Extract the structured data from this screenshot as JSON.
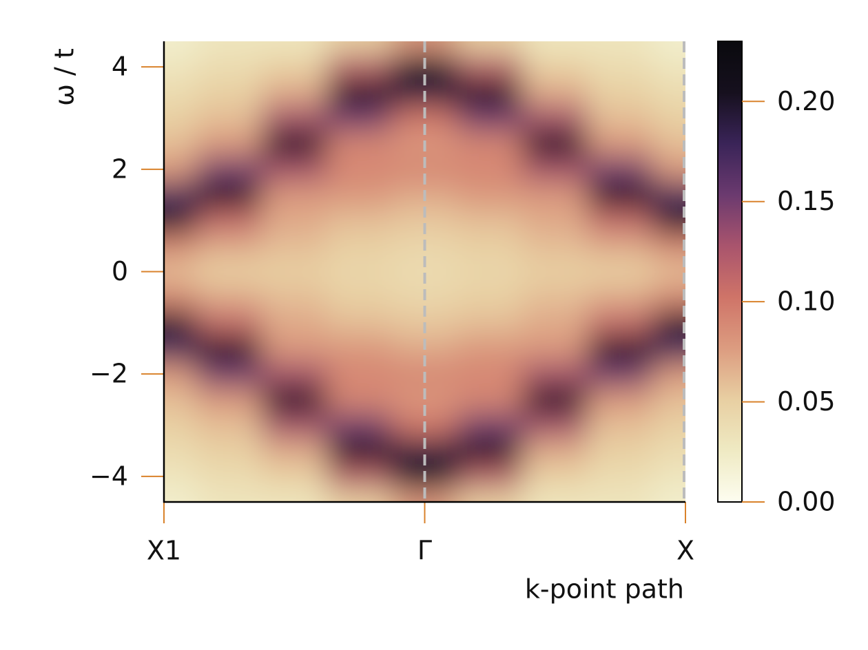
{
  "chart_data": {
    "type": "heatmap",
    "xlabel": "k-point path",
    "ylabel": "ω / t",
    "x": [
      0,
      0.125,
      0.25,
      0.375,
      0.5,
      0.625,
      0.75,
      0.875,
      1
    ],
    "y": [
      -4.5,
      -4,
      -3.5,
      -3,
      -2.5,
      -2,
      -1.5,
      -1,
      -0.5,
      0,
      0.5,
      1,
      1.5,
      2,
      2.5,
      3,
      3.5,
      4,
      4.5
    ],
    "z": [
      [
        0.02,
        0.03,
        0.03,
        0.05,
        0.08,
        0.05,
        0.03,
        0.03,
        0.02
      ],
      [
        0.03,
        0.04,
        0.05,
        0.12,
        0.2,
        0.12,
        0.05,
        0.04,
        0.03
      ],
      [
        0.04,
        0.05,
        0.07,
        0.22,
        0.19,
        0.22,
        0.07,
        0.05,
        0.04
      ],
      [
        0.05,
        0.06,
        0.13,
        0.15,
        0.1,
        0.15,
        0.13,
        0.06,
        0.05
      ],
      [
        0.06,
        0.08,
        0.22,
        0.09,
        0.08,
        0.09,
        0.22,
        0.08,
        0.06
      ],
      [
        0.08,
        0.15,
        0.13,
        0.09,
        0.09,
        0.09,
        0.13,
        0.15,
        0.08
      ],
      [
        0.17,
        0.21,
        0.08,
        0.08,
        0.07,
        0.08,
        0.08,
        0.21,
        0.17
      ],
      [
        0.2,
        0.11,
        0.07,
        0.06,
        0.055,
        0.06,
        0.07,
        0.11,
        0.2
      ],
      [
        0.09,
        0.07,
        0.06,
        0.05,
        0.045,
        0.05,
        0.06,
        0.07,
        0.09
      ],
      [
        0.06,
        0.05,
        0.05,
        0.045,
        0.04,
        0.045,
        0.05,
        0.05,
        0.06
      ],
      [
        0.09,
        0.07,
        0.06,
        0.05,
        0.045,
        0.05,
        0.06,
        0.07,
        0.09
      ],
      [
        0.2,
        0.11,
        0.07,
        0.06,
        0.055,
        0.06,
        0.07,
        0.11,
        0.2
      ],
      [
        0.17,
        0.21,
        0.08,
        0.08,
        0.07,
        0.08,
        0.08,
        0.21,
        0.17
      ],
      [
        0.08,
        0.15,
        0.13,
        0.09,
        0.09,
        0.09,
        0.13,
        0.15,
        0.08
      ],
      [
        0.06,
        0.08,
        0.22,
        0.09,
        0.08,
        0.09,
        0.22,
        0.08,
        0.06
      ],
      [
        0.05,
        0.06,
        0.13,
        0.15,
        0.1,
        0.15,
        0.13,
        0.06,
        0.05
      ],
      [
        0.04,
        0.05,
        0.07,
        0.22,
        0.19,
        0.22,
        0.07,
        0.05,
        0.04
      ],
      [
        0.03,
        0.04,
        0.05,
        0.12,
        0.2,
        0.12,
        0.05,
        0.04,
        0.03
      ],
      [
        0.02,
        0.03,
        0.03,
        0.05,
        0.08,
        0.05,
        0.03,
        0.03,
        0.02
      ]
    ],
    "xlim": [
      0,
      1
    ],
    "xticks": [
      {
        "value": 0,
        "label": "X1"
      },
      {
        "value": 0.5,
        "label": "Γ"
      },
      {
        "value": 1,
        "label": "X"
      }
    ],
    "ylim": [
      -4.5,
      4.5
    ],
    "yticks": [
      {
        "value": -4,
        "label": "−4"
      },
      {
        "value": -2,
        "label": "−2"
      },
      0,
      2,
      4
    ],
    "zlim": [
      0,
      0.23
    ],
    "zticks": [
      {
        "value": 0,
        "label": "0.00"
      },
      {
        "value": 0.05,
        "label": "0.05"
      },
      {
        "value": 0.1,
        "label": "0.10"
      },
      {
        "value": 0.15,
        "label": "0.15"
      },
      {
        "value": 0.2,
        "label": "0.20"
      }
    ],
    "colormap": [
      "#fdfdf0",
      "#efeac3",
      "#e8cfa2",
      "#dc9c80",
      "#cf7468",
      "#a9546d",
      "#6b3a6f",
      "#3a2458",
      "#16101e",
      "#0a0a0e"
    ],
    "tick_color": "#d9822b",
    "guide_color": "#bcbcbc"
  }
}
